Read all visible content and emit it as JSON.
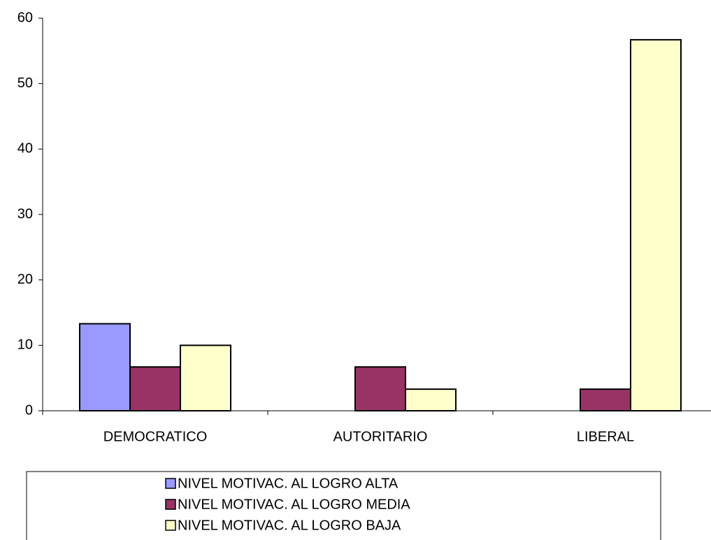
{
  "chart_data": {
    "type": "bar",
    "categories": [
      "DEMOCRATICO",
      "AUTORITARIO",
      "LIBERAL"
    ],
    "series": [
      {
        "name": "NIVEL MOTIVAC. AL LOGRO ALTA",
        "color": "#9999ff",
        "values": [
          13.3,
          0,
          0
        ]
      },
      {
        "name": "NIVEL MOTIVAC. AL LOGRO MEDIA",
        "color": "#993366",
        "values": [
          6.7,
          6.7,
          3.3
        ]
      },
      {
        "name": "NIVEL MOTIVAC. AL LOGRO BAJA",
        "color": "#ffffcc",
        "values": [
          10,
          3.3,
          56.7
        ]
      }
    ],
    "ylim": [
      0,
      60
    ],
    "yticks": [
      0,
      10,
      20,
      30,
      40,
      50,
      60
    ],
    "grid": false,
    "legend": "bottom"
  }
}
